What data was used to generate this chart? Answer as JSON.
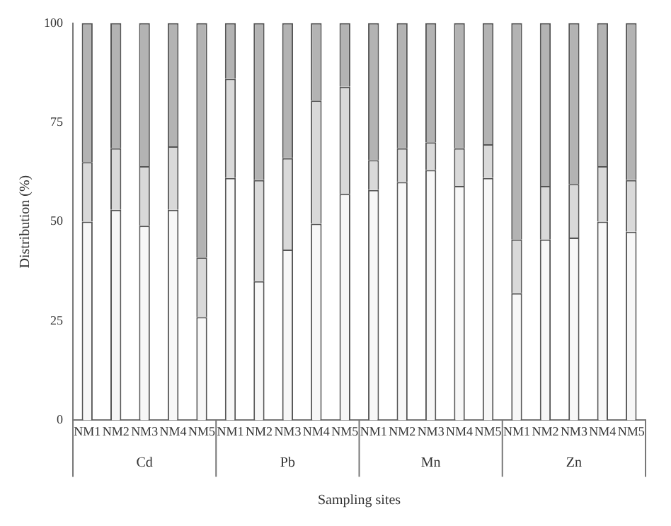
{
  "chart_data": {
    "type": "bar",
    "stacked": true,
    "ylabel": "Distribution (%)",
    "xlabel": "Sampling sites",
    "categories": [
      "NM1",
      "NM2",
      "NM3",
      "NM4",
      "NM5",
      "NM1",
      "NM2",
      "NM3",
      "NM4",
      "NM5",
      "NM1",
      "NM2",
      "NM3",
      "NM4",
      "NM5",
      "NM1",
      "NM2",
      "NM3",
      "NM4",
      "NM5"
    ],
    "series": [
      {
        "color": "#f7f7f7",
        "values": [
          50,
          53,
          49,
          53,
          26,
          61,
          35,
          43,
          49.5,
          57,
          58,
          60,
          63,
          59,
          61,
          32,
          45.5,
          46,
          50,
          47.5
        ]
      },
      {
        "color": "#d9d9d9",
        "values": [
          15,
          15.5,
          15,
          16,
          15,
          25,
          25.5,
          23,
          31,
          27,
          7.5,
          8.5,
          7,
          9.5,
          8.5,
          13.5,
          13.5,
          13.5,
          14,
          13
        ]
      },
      {
        "color": "#b3b3b3",
        "values": [
          35,
          31.5,
          36,
          31,
          59,
          14,
          39.5,
          34,
          19.5,
          16,
          34.5,
          31.5,
          30,
          31.5,
          30.5,
          54.5,
          41,
          40.5,
          36,
          39.5
        ]
      }
    ],
    "annotations": [
      "Cd",
      "Pb",
      "Mn",
      "Zn"
    ],
    "ylim": [
      0,
      100
    ],
    "yticks": [
      0,
      25,
      50,
      75,
      100
    ],
    "grid": false,
    "legend": false
  }
}
